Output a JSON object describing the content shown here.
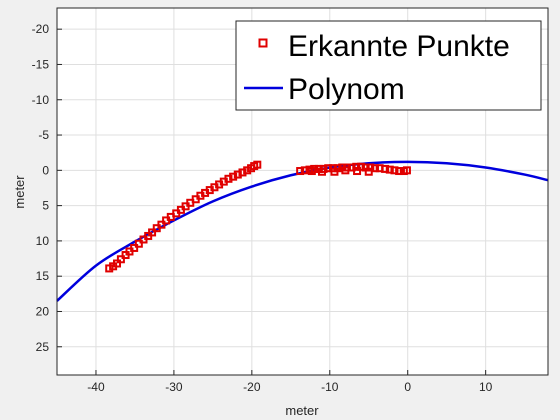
{
  "chart_data": {
    "type": "scatter",
    "xlabel": "meter",
    "ylabel": "meter",
    "xlim": [
      -45,
      18
    ],
    "ylim": [
      -23,
      29
    ],
    "y_axis_reversed": true,
    "x_ticks": [
      -40,
      -30,
      -20,
      -10,
      0,
      10
    ],
    "y_ticks": [
      -20,
      -15,
      -10,
      -5,
      0,
      5,
      10,
      15,
      20,
      25
    ],
    "grid": true,
    "legend": {
      "placement": "top-right",
      "entries": [
        "Erkannte Punkte",
        "Polynom"
      ]
    },
    "series": [
      {
        "name": "Erkannte Punkte",
        "kind": "markers",
        "color": "#e00000",
        "points": [
          [
            -38.3,
            13.9
          ],
          [
            -37.8,
            13.6
          ],
          [
            -37.3,
            13.2
          ],
          [
            -36.8,
            12.6
          ],
          [
            -36.2,
            12.0
          ],
          [
            -35.7,
            11.5
          ],
          [
            -35.1,
            11.0
          ],
          [
            -34.5,
            10.4
          ],
          [
            -33.9,
            9.8
          ],
          [
            -33.3,
            9.3
          ],
          [
            -32.8,
            8.8
          ],
          [
            -32.2,
            8.2
          ],
          [
            -31.6,
            7.7
          ],
          [
            -31.0,
            7.1
          ],
          [
            -30.4,
            6.6
          ],
          [
            -29.7,
            6.1
          ],
          [
            -29.1,
            5.6
          ],
          [
            -28.5,
            5.1
          ],
          [
            -27.9,
            4.6
          ],
          [
            -27.2,
            4.1
          ],
          [
            -26.6,
            3.6
          ],
          [
            -26.0,
            3.2
          ],
          [
            -25.4,
            2.8
          ],
          [
            -24.8,
            2.4
          ],
          [
            -24.2,
            2.0
          ],
          [
            -23.6,
            1.6
          ],
          [
            -23.0,
            1.2
          ],
          [
            -22.4,
            0.9
          ],
          [
            -21.8,
            0.6
          ],
          [
            -21.2,
            0.3
          ],
          [
            -20.6,
            0.0
          ],
          [
            -20.1,
            -0.3
          ],
          [
            -19.7,
            -0.6
          ],
          [
            -19.3,
            -0.8
          ],
          [
            -13.8,
            0.1
          ],
          [
            -13.2,
            0.0
          ],
          [
            -12.6,
            -0.1
          ],
          [
            -12.0,
            -0.2
          ],
          [
            -11.4,
            -0.2
          ],
          [
            -10.8,
            -0.2
          ],
          [
            -10.2,
            -0.3
          ],
          [
            -9.6,
            -0.3
          ],
          [
            -9.0,
            -0.3
          ],
          [
            -8.4,
            -0.4
          ],
          [
            -7.8,
            -0.4
          ],
          [
            -7.2,
            -0.4
          ],
          [
            -6.6,
            -0.5
          ],
          [
            -6.0,
            -0.5
          ],
          [
            -5.4,
            -0.4
          ],
          [
            -4.8,
            -0.4
          ],
          [
            -4.2,
            -0.3
          ],
          [
            -3.6,
            -0.3
          ],
          [
            -2.9,
            -0.2
          ],
          [
            -2.3,
            -0.1
          ],
          [
            -1.7,
            0.0
          ],
          [
            -1.1,
            0.1
          ],
          [
            -0.5,
            0.1
          ],
          [
            -0.1,
            0.0
          ],
          [
            -12.3,
            0.1
          ],
          [
            -11.0,
            0.2
          ],
          [
            -9.4,
            0.2
          ],
          [
            -8.0,
            0.0
          ],
          [
            -6.5,
            0.1
          ],
          [
            -5.0,
            0.2
          ]
        ]
      },
      {
        "name": "Polynom",
        "kind": "line",
        "color": "#0000dd",
        "x": [
          -45,
          -40,
          -35,
          -30,
          -25,
          -20,
          -15,
          -10,
          -5,
          0,
          5,
          10,
          15,
          18
        ],
        "y": [
          18.5,
          13.5,
          10.1,
          7.1,
          4.4,
          2.3,
          0.7,
          -0.4,
          -1.0,
          -1.2,
          -1.0,
          -0.4,
          0.6,
          1.4
        ]
      }
    ]
  }
}
